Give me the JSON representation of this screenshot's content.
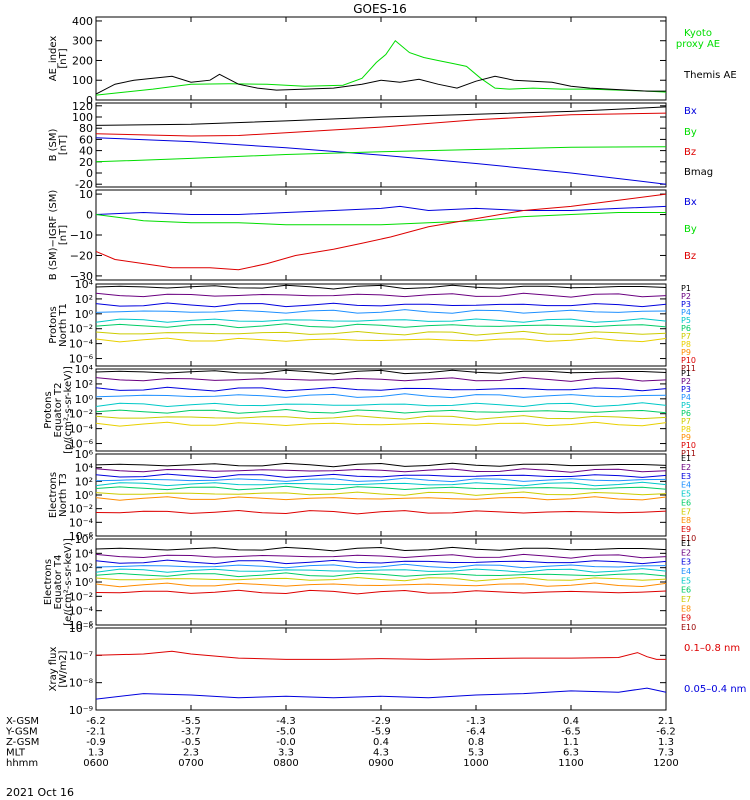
{
  "chart_data": {
    "type": "line",
    "title": "GOES-16",
    "date": "2021 Oct 16",
    "x_ticks": [
      "0600",
      "0700",
      "0800",
      "0900",
      "1000",
      "1100",
      "1200"
    ],
    "xlim": [
      "0600",
      "1200"
    ],
    "ephemeris": [
      {
        "label": "X-GSM",
        "values": [
          "-6.2",
          "-5.5",
          "-4.3",
          "-2.9",
          "-1.3",
          "0.4",
          "2.1"
        ]
      },
      {
        "label": "Y-GSM",
        "values": [
          "-2.1",
          "-3.7",
          "-5.0",
          "-5.9",
          "-6.4",
          "-6.5",
          "-6.2"
        ]
      },
      {
        "label": "Z-GSM",
        "values": [
          "-0.9",
          "-0.5",
          "-0.0",
          "0.4",
          "0.8",
          "1.1",
          "1.3"
        ]
      },
      {
        "label": "MLT",
        "values": [
          "1.3",
          "2.3",
          "3.3",
          "4.3",
          "5.3",
          "6.3",
          "7.3"
        ]
      },
      {
        "label": "hhmm",
        "values": [
          "0600",
          "0700",
          "0800",
          "0900",
          "1000",
          "1100",
          "1200"
        ]
      }
    ],
    "panels": [
      {
        "ylabel": [
          "AE_index",
          "[nT]"
        ],
        "scale": "linear",
        "ylim": [
          0,
          420
        ],
        "ticks": [
          0,
          100,
          200,
          300,
          400
        ],
        "tick_labels": [
          "0",
          "100",
          "200",
          "300",
          "400"
        ],
        "series": [
          {
            "name": "Kyoto proxy AE",
            "color": "#00dd00",
            "x": [
              0,
              0.3,
              0.6,
              1.0,
              1.4,
              1.8,
              2.2,
              2.6,
              2.8,
              2.95,
              3.05,
              3.15,
              3.3,
              3.45,
              3.6,
              3.75,
              3.9,
              4.05,
              4.2,
              4.35,
              4.6,
              4.9,
              5.2,
              5.5,
              5.8,
              6.0
            ],
            "y": [
              25,
              40,
              55,
              80,
              82,
              80,
              70,
              75,
              110,
              190,
              230,
              300,
              240,
              215,
              200,
              185,
              170,
              110,
              60,
              55,
              60,
              55,
              55,
              50,
              45,
              40
            ]
          },
          {
            "name": "Themis AE",
            "color": "#000000",
            "x": [
              0,
              0.2,
              0.4,
              0.6,
              0.8,
              1.0,
              1.2,
              1.3,
              1.5,
              1.7,
              1.9,
              2.2,
              2.5,
              2.8,
              3.0,
              3.2,
              3.4,
              3.6,
              3.8,
              4.0,
              4.2,
              4.4,
              4.6,
              4.8,
              5.0,
              5.2,
              5.4,
              5.6,
              5.8,
              6.0
            ],
            "y": [
              30,
              80,
              100,
              110,
              120,
              90,
              100,
              130,
              80,
              60,
              50,
              55,
              60,
              80,
              100,
              90,
              105,
              80,
              60,
              95,
              120,
              100,
              95,
              90,
              70,
              60,
              55,
              50,
              45,
              45
            ]
          }
        ],
        "legend": [
          {
            "text": "Kyoto",
            "color": "#00dd00"
          },
          {
            "text": "proxy AE",
            "color": "#00dd00"
          },
          {
            "text": "Themis AE",
            "color": "#000000"
          }
        ]
      },
      {
        "ylabel": [
          "B (SM)",
          "[nT]"
        ],
        "scale": "linear",
        "ylim": [
          -25,
          125
        ],
        "ticks": [
          -20,
          0,
          20,
          40,
          60,
          80,
          100,
          120
        ],
        "tick_labels": [
          "-20",
          "0",
          "20",
          "40",
          "60",
          "80",
          "100",
          "120"
        ],
        "series": [
          {
            "name": "Bx",
            "color": "#0000dd",
            "x": [
              0,
              1,
              2,
              3,
              4,
              5,
              6
            ],
            "y": [
              63,
              56,
              45,
              32,
              17,
              0,
              -20
            ]
          },
          {
            "name": "By",
            "color": "#00dd00",
            "x": [
              0,
              1,
              2,
              3,
              4,
              5,
              6
            ],
            "y": [
              20,
              26,
              33,
              38,
              42,
              46,
              47
            ]
          },
          {
            "name": "Bz",
            "color": "#dd0000",
            "x": [
              0,
              1,
              1.5,
              2,
              3,
              4,
              5,
              6
            ],
            "y": [
              70,
              66,
              67,
              72,
              82,
              95,
              104,
              107
            ]
          },
          {
            "name": "Bmag",
            "color": "#000000",
            "x": [
              0,
              1,
              2,
              3,
              4,
              5,
              6
            ],
            "y": [
              85,
              87,
              93,
              100,
              105,
              110,
              118
            ]
          }
        ],
        "legend": [
          {
            "text": "Bx",
            "color": "#0000dd"
          },
          {
            "text": "By",
            "color": "#00dd00"
          },
          {
            "text": "Bz",
            "color": "#dd0000"
          },
          {
            "text": "Bmag",
            "color": "#000000"
          }
        ]
      },
      {
        "ylabel": [
          "B (SM)−IGRF (SM)",
          "[nT]"
        ],
        "scale": "linear",
        "ylim": [
          -32,
          12
        ],
        "ticks": [
          -30,
          -20,
          -10,
          0,
          10
        ],
        "tick_labels": [
          "−30",
          "−20",
          "−10",
          "0",
          "10"
        ],
        "series": [
          {
            "name": "Bx",
            "color": "#0000dd",
            "x": [
              0,
              0.5,
              1,
              1.5,
              2,
              2.5,
              3,
              3.2,
              3.5,
              4,
              4.5,
              5,
              5.5,
              6
            ],
            "y": [
              0,
              1,
              0,
              0,
              1,
              2,
              3,
              4,
              2,
              3,
              2,
              2,
              3,
              4
            ]
          },
          {
            "name": "By",
            "color": "#00dd00",
            "x": [
              0,
              0.5,
              1,
              1.5,
              2,
              2.5,
              3,
              3.5,
              4,
              4.5,
              5,
              5.5,
              6
            ],
            "y": [
              0,
              -3,
              -4,
              -4,
              -5,
              -5,
              -5,
              -4,
              -3,
              -1,
              0,
              1,
              1
            ]
          },
          {
            "name": "Bz",
            "color": "#dd0000",
            "x": [
              0,
              0.2,
              0.5,
              0.8,
              1.2,
              1.5,
              1.8,
              2.1,
              2.5,
              2.8,
              3.1,
              3.5,
              4,
              4.5,
              5,
              5.5,
              6
            ],
            "y": [
              -18,
              -22,
              -24,
              -26,
              -26,
              -27,
              -24,
              -20,
              -17,
              -14,
              -11,
              -6,
              -2,
              2,
              4,
              7,
              10
            ]
          }
        ],
        "legend": [
          {
            "text": "Bx",
            "color": "#0000dd"
          },
          {
            "text": "By",
            "color": "#00dd00"
          },
          {
            "text": "Bz",
            "color": "#dd0000"
          }
        ]
      },
      {
        "ylabel": [
          "Protons",
          "North T1"
        ],
        "scale": "log",
        "ylim": [
          -7,
          4
        ],
        "ticks": [
          4,
          2,
          0,
          -2,
          -4,
          -6
        ],
        "tick_labels": [
          "10⁴",
          "10²",
          "10⁰",
          "10⁻²",
          "10⁻⁴",
          "10⁻⁶"
        ],
        "levels": [
          3.6,
          2.5,
          1.2,
          0.3,
          -0.9,
          -1.6,
          -2.6,
          -3.5
        ],
        "level_series": [
          "P1",
          "P2",
          "P3",
          "P4",
          "P5",
          "P6",
          "P7",
          "P8"
        ],
        "channels": [
          {
            "text": "P1",
            "color": "#000000"
          },
          {
            "text": "P2",
            "color": "#6a0080"
          },
          {
            "text": "P3",
            "color": "#0000dd"
          },
          {
            "text": "P4",
            "color": "#1e90ff"
          },
          {
            "text": "P5",
            "color": "#00c8c8"
          },
          {
            "text": "P6",
            "color": "#00cc66"
          },
          {
            "text": "P7",
            "color": "#cccc00"
          },
          {
            "text": "P8",
            "color": "#e8d000"
          },
          {
            "text": "P9",
            "color": "#ff8c00"
          },
          {
            "text": "P10",
            "color": "#dd0000"
          },
          {
            "text": "P11",
            "color": "#990000"
          }
        ]
      },
      {
        "ylabel": [
          "Protons",
          "Equator T2",
          "[p/(cm²-s-sr-keV)]"
        ],
        "scale": "log",
        "ylim": [
          -7,
          4
        ],
        "ticks": [
          4,
          2,
          0,
          -2,
          -4,
          -6
        ],
        "tick_labels": [
          "10⁴",
          "10²",
          "10⁰",
          "10⁻²",
          "10⁻⁴",
          "10⁻⁶"
        ],
        "levels": [
          3.6,
          2.6,
          1.3,
          0.4,
          -0.8,
          -1.7,
          -2.5,
          -3.4
        ],
        "level_series": [
          "P1",
          "P2",
          "P3",
          "P4",
          "P5",
          "P6",
          "P7",
          "P8"
        ],
        "channels": [
          {
            "text": "P1",
            "color": "#000000"
          },
          {
            "text": "P2",
            "color": "#6a0080"
          },
          {
            "text": "P3",
            "color": "#0000dd"
          },
          {
            "text": "P4",
            "color": "#1e90ff"
          },
          {
            "text": "P5",
            "color": "#00c8c8"
          },
          {
            "text": "P6",
            "color": "#00cc66"
          },
          {
            "text": "P7",
            "color": "#cccc00"
          },
          {
            "text": "P8",
            "color": "#e8d000"
          },
          {
            "text": "P9",
            "color": "#ff8c00"
          },
          {
            "text": "P10",
            "color": "#dd0000"
          },
          {
            "text": "P11",
            "color": "#990000"
          }
        ]
      },
      {
        "ylabel": [
          "Electrons",
          "North T3"
        ],
        "scale": "log",
        "ylim": [
          -6,
          6
        ],
        "ticks": [
          6,
          4,
          2,
          0,
          -2,
          -4,
          -6
        ],
        "tick_labels": [
          "10⁶",
          "10⁴",
          "10²",
          "10⁰",
          "10⁻²",
          "10⁻⁴",
          "10⁻⁶"
        ],
        "levels": [
          4.4,
          3.6,
          2.8,
          2.2,
          1.6,
          1.0,
          0.2,
          -0.5,
          -2.5
        ],
        "level_series": [
          "E1",
          "E2",
          "E3",
          "E4",
          "E5",
          "E6",
          "E7",
          "E8",
          "E9"
        ],
        "channels": [
          {
            "text": "E1",
            "color": "#000000"
          },
          {
            "text": "E2",
            "color": "#6a0080"
          },
          {
            "text": "E3",
            "color": "#0000dd"
          },
          {
            "text": "E4",
            "color": "#1e90ff"
          },
          {
            "text": "E5",
            "color": "#00c8c8"
          },
          {
            "text": "E6",
            "color": "#00cc66"
          },
          {
            "text": "E7",
            "color": "#cccc00"
          },
          {
            "text": "E8",
            "color": "#ff8c00"
          },
          {
            "text": "E9",
            "color": "#dd0000"
          },
          {
            "text": "E10",
            "color": "#990000"
          }
        ]
      },
      {
        "ylabel": [
          "Electrons",
          "Equator T4",
          "[e/(cm²-s-sr-keV)]"
        ],
        "scale": "log",
        "ylim": [
          -6,
          6
        ],
        "ticks": [
          6,
          4,
          2,
          0,
          -2,
          -4,
          -6
        ],
        "tick_labels": [
          "10⁶",
          "10⁴",
          "10²",
          "10⁰",
          "10⁻²",
          "10⁻⁴",
          "10⁻⁶"
        ],
        "levels": [
          4.6,
          3.6,
          2.8,
          2.2,
          1.6,
          1.0,
          0.4,
          -0.4,
          -1.4
        ],
        "level_series": [
          "E1",
          "E2",
          "E3",
          "E4",
          "E5",
          "E6",
          "E7",
          "E8",
          "E9"
        ],
        "channels": [
          {
            "text": "E1",
            "color": "#000000"
          },
          {
            "text": "E2",
            "color": "#6a0080"
          },
          {
            "text": "E3",
            "color": "#0000dd"
          },
          {
            "text": "E4",
            "color": "#1e90ff"
          },
          {
            "text": "E5",
            "color": "#00c8c8"
          },
          {
            "text": "E6",
            "color": "#00cc66"
          },
          {
            "text": "E7",
            "color": "#cccc00"
          },
          {
            "text": "E8",
            "color": "#ff8c00"
          },
          {
            "text": "E9",
            "color": "#dd0000"
          },
          {
            "text": "E10",
            "color": "#990000"
          }
        ]
      },
      {
        "ylabel": [
          "Xray flux",
          "[W/m2]"
        ],
        "scale": "log",
        "ylim": [
          -9,
          -6
        ],
        "ticks": [
          -6,
          -7,
          -8,
          -9
        ],
        "tick_labels": [
          "10⁻⁶",
          "10⁻⁷",
          "10⁻⁸",
          "10⁻⁹"
        ],
        "series": [
          {
            "name": "0.1-0.8 nm",
            "color": "#dd0000",
            "x": [
              0,
              0.5,
              0.8,
              1.0,
              1.5,
              2,
              2.5,
              3,
              3.5,
              4,
              4.5,
              5,
              5.5,
              5.7,
              5.8,
              5.9,
              6
            ],
            "y": [
              -7.0,
              -6.95,
              -6.85,
              -6.95,
              -7.1,
              -7.15,
              -7.15,
              -7.12,
              -7.15,
              -7.12,
              -7.1,
              -7.1,
              -7.08,
              -6.9,
              -7.05,
              -7.15,
              -7.15
            ]
          },
          {
            "name": "0.05-0.4 nm",
            "color": "#0000dd",
            "x": [
              0,
              0.5,
              1,
              1.5,
              2,
              2.5,
              3,
              3.5,
              4,
              4.5,
              5,
              5.5,
              5.8,
              6
            ],
            "y": [
              -8.6,
              -8.4,
              -8.45,
              -8.55,
              -8.5,
              -8.55,
              -8.5,
              -8.55,
              -8.45,
              -8.4,
              -8.3,
              -8.35,
              -8.2,
              -8.35
            ]
          }
        ],
        "legend": [
          {
            "text": "0.1–0.8 nm",
            "color": "#dd0000"
          },
          {
            "text": "0.05–0.4 nm",
            "color": "#0000dd"
          }
        ]
      }
    ]
  }
}
